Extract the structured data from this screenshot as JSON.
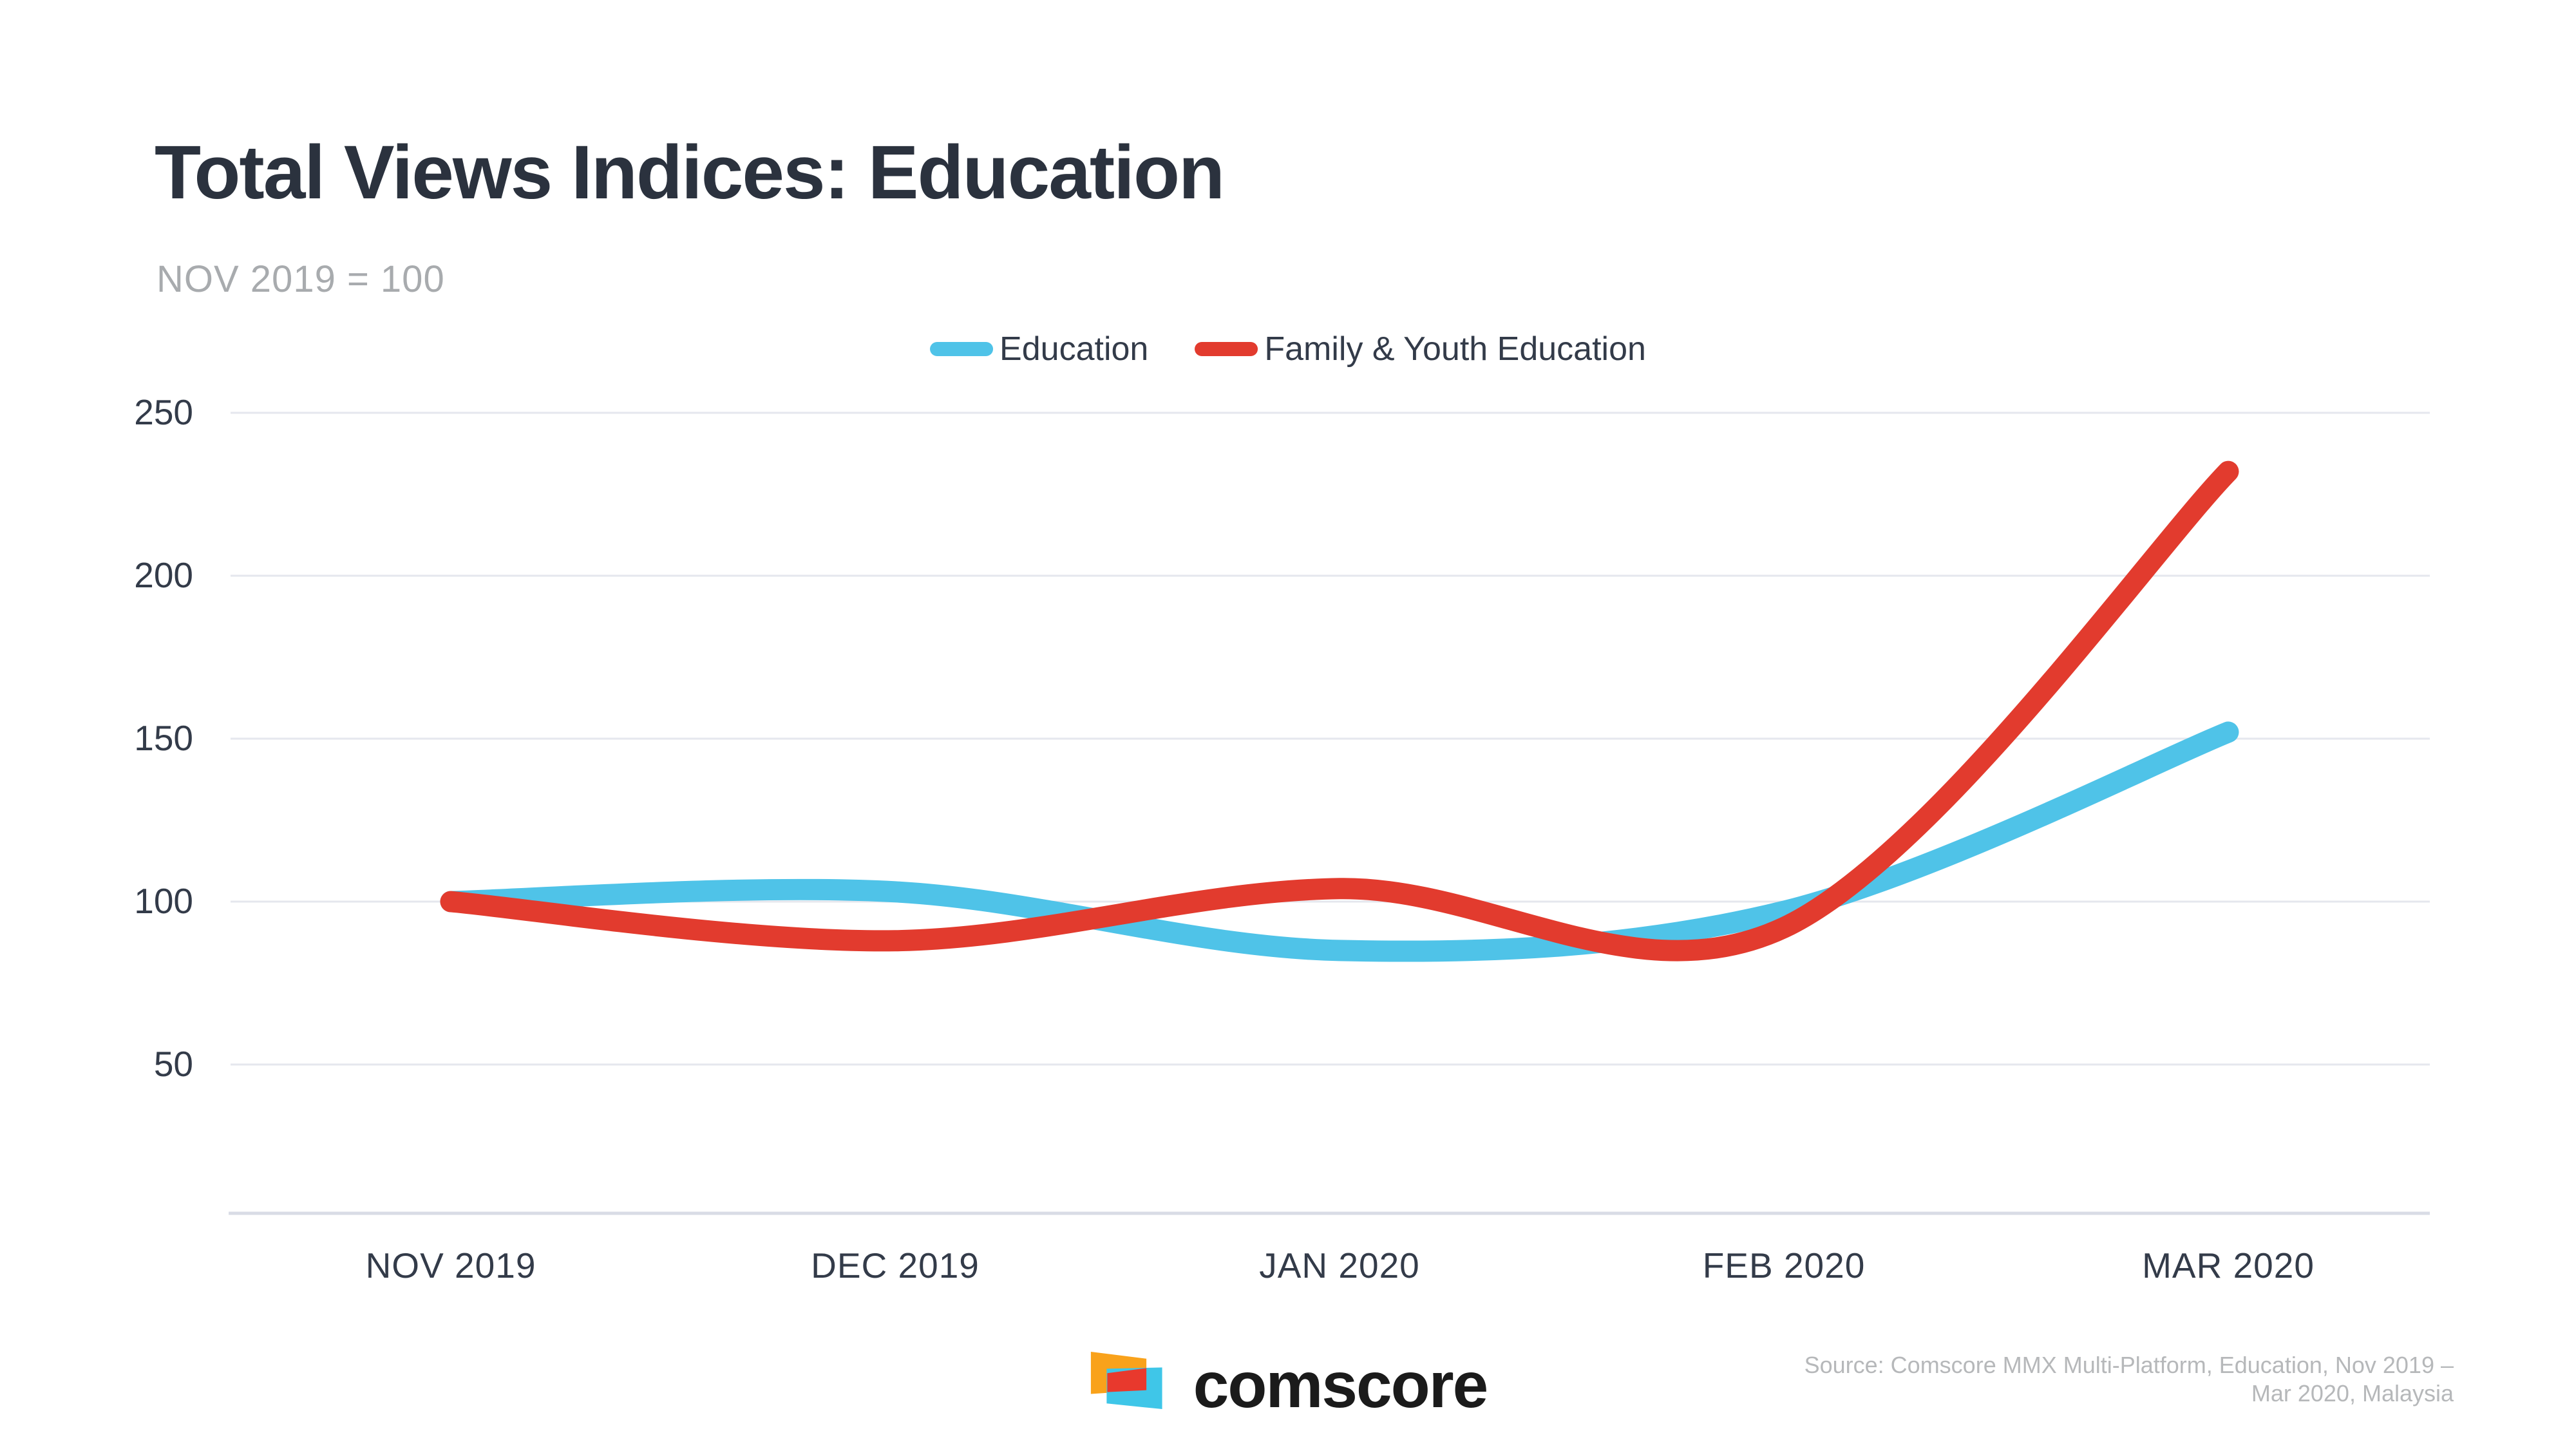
{
  "header": {
    "title": "Total Views Indices: Education",
    "subtitle": "NOV 2019 = 100"
  },
  "chart_data": {
    "type": "line",
    "title": "Total Views Indices: Education",
    "subtitle": "NOV 2019 = 100",
    "categories": [
      "NOV 2019",
      "DEC 2019",
      "JAN 2020",
      "FEB 2020",
      "MAR 2020"
    ],
    "series": [
      {
        "name": "Education",
        "color": "#4fc3e8",
        "values": [
          100,
          103,
          85,
          97,
          152
        ]
      },
      {
        "name": "Family & Youth Education",
        "color": "#e23b2e",
        "values": [
          100,
          88,
          104,
          92,
          232
        ]
      }
    ],
    "y_ticks": [
      250,
      200,
      150,
      100,
      50
    ],
    "ylim": [
      0,
      250
    ],
    "xlabel": "",
    "ylabel": "",
    "grid": "horizontal",
    "legend_position": "top",
    "line_style": "smooth"
  },
  "footer": {
    "logo_text": "comscore",
    "source_line1": "Source: Comscore MMX Multi-Platform, Education, Nov 2019 –",
    "source_line2": "Mar 2020, Malaysia"
  },
  "colors": {
    "title": "#2b323e",
    "subtitle": "#a8abae",
    "tick": "#333b49",
    "grid": "#e5e7ee",
    "axis": "#d9dce6",
    "source": "#b6b8ba",
    "education_line": "#4fc3e8",
    "family_line": "#e23b2e",
    "logo_orange": "#f9a21b",
    "logo_red": "#e8392d",
    "logo_cyan": "#3fc6e8",
    "wordmark": "#1b1b1b"
  }
}
